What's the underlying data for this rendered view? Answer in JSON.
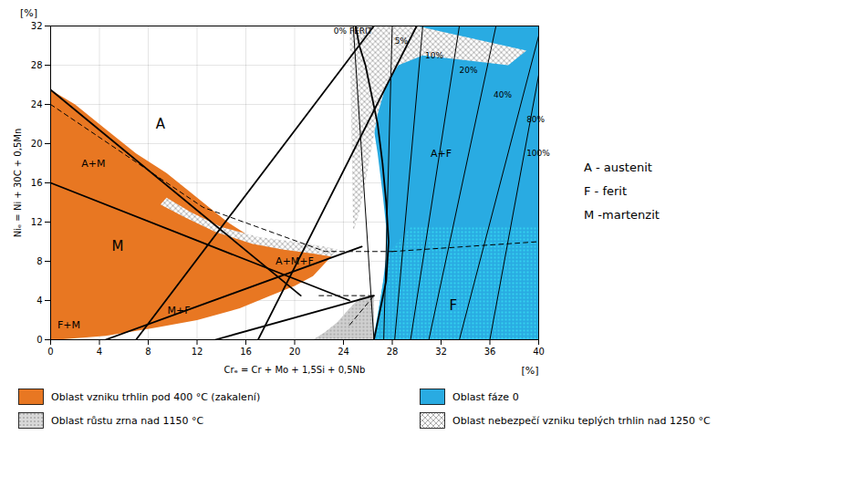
{
  "chart_data": {
    "type": "area",
    "xlabel": "Crₑ = Cr + Mo + 1,5Si + 0,5Nb",
    "ylabel": "Niₑ = Ni + 30C + 0,5Mn",
    "x_unit": "[%]",
    "y_unit": "[%]",
    "note": "A - austenit\nF - ferit\nM -martenzit",
    "xlim": [
      0,
      40
    ],
    "ylim": [
      0,
      32
    ],
    "xticks": [
      0,
      4,
      8,
      12,
      16,
      20,
      24,
      28,
      32,
      36,
      40
    ],
    "yticks": [
      0,
      4,
      8,
      12,
      16,
      20,
      24,
      28,
      32
    ],
    "grid": true,
    "legend_items": [
      {
        "name": "Oblast vzniku trhlin pod 400 °C (zakalení)",
        "color": "#E87722"
      },
      {
        "name": "Oblast fáze 0",
        "color": "#29ABE2"
      },
      {
        "name": "Oblast růstu zrna nad 1150 °C",
        "color": "#D8D8D8",
        "marker": "dots"
      },
      {
        "name": "Oblast nebezpečí vzniku teplých trhlin nad 1250 °C",
        "color": "white",
        "marker": "cross"
      }
    ],
    "regions": [
      {
        "color": "#E87722",
        "polygon": [
          [
            0,
            0
          ],
          [
            0,
            25.5
          ],
          [
            2.0,
            24.0
          ],
          [
            4.5,
            21.5
          ],
          [
            7.0,
            19.0
          ],
          [
            9.5,
            17.0
          ],
          [
            11.5,
            15.0
          ],
          [
            13.0,
            13.5
          ],
          [
            14.5,
            12.0
          ],
          [
            16.0,
            10.8
          ],
          [
            18.0,
            9.8
          ],
          [
            20.0,
            9.2
          ],
          [
            21.5,
            9.0
          ],
          [
            22.5,
            9.2
          ],
          [
            23.0,
            8.5
          ],
          [
            21.5,
            6.5
          ],
          [
            20.0,
            5.5
          ],
          [
            18.0,
            4.5
          ],
          [
            15.5,
            3.2
          ],
          [
            12.0,
            2.0
          ],
          [
            8.5,
            1.2
          ],
          [
            4.5,
            0.4
          ],
          [
            1.0,
            0.05
          ],
          [
            0,
            0
          ]
        ]
      },
      {
        "color": "#29ABE2",
        "polygon": [
          [
            25.0,
            32
          ],
          [
            40,
            32
          ],
          [
            40,
            0
          ],
          [
            26.5,
            0
          ],
          [
            26.5,
            0.5
          ],
          [
            26.8,
            2.5
          ],
          [
            27.2,
            5.5
          ],
          [
            27.5,
            8.5
          ],
          [
            27.5,
            11.5
          ],
          [
            27.2,
            15.0
          ],
          [
            26.8,
            19.0
          ],
          [
            26.3,
            23.0
          ],
          [
            25.8,
            27.0
          ],
          [
            25.3,
            30.0
          ],
          [
            25.0,
            32
          ]
        ]
      },
      {
        "color": "#D0D0D0",
        "marker": "dots",
        "polygon": [
          [
            21.5,
            0
          ],
          [
            22.5,
            0.8
          ],
          [
            23.5,
            1.8
          ],
          [
            24.5,
            3.2
          ],
          [
            25.5,
            4.5
          ],
          [
            26.5,
            4.5
          ],
          [
            26.5,
            0
          ],
          [
            21.5,
            0
          ]
        ]
      },
      {
        "color": "#29ABE2",
        "marker": "dots",
        "polygon": [
          [
            26.5,
            0
          ],
          [
            27.2,
            5.5
          ],
          [
            27.8,
            9.0
          ],
          [
            29.5,
            11.5
          ],
          [
            40,
            11.5
          ],
          [
            40,
            0
          ],
          [
            26.5,
            0
          ]
        ]
      },
      {
        "color": "white",
        "marker": "cross",
        "polygon": [
          [
            24.5,
            32
          ],
          [
            30.0,
            32
          ],
          [
            39.0,
            29.5
          ],
          [
            37.5,
            28.0
          ],
          [
            30.5,
            29.0
          ],
          [
            28.5,
            28.0
          ],
          [
            27.5,
            26.0
          ],
          [
            26.8,
            23.0
          ],
          [
            26.3,
            19.5
          ],
          [
            25.8,
            16.0
          ],
          [
            25.3,
            13.0
          ],
          [
            24.8,
            11.0
          ],
          [
            24.5,
            32
          ]
        ]
      },
      {
        "color": "white",
        "marker": "cross",
        "polygon": [
          [
            9.5,
            14.5
          ],
          [
            11.5,
            13.0
          ],
          [
            14.0,
            11.5
          ],
          [
            17.0,
            10.5
          ],
          [
            20.0,
            10.0
          ],
          [
            22.5,
            9.5
          ],
          [
            23.5,
            9.2
          ],
          [
            23.0,
            8.5
          ],
          [
            21.5,
            8.8
          ],
          [
            19.0,
            9.2
          ],
          [
            16.5,
            9.8
          ],
          [
            13.5,
            11.0
          ],
          [
            11.0,
            12.5
          ],
          [
            9.0,
            13.8
          ],
          [
            9.5,
            14.5
          ]
        ]
      }
    ],
    "ferrite_lines": [
      {
        "label": "0% FERIT",
        "x": [
          24.8,
          26.5
        ],
        "y": [
          32,
          0
        ],
        "label_x": 23.2,
        "label_y": 31.5
      },
      {
        "label": "5%",
        "x": [
          28.0,
          27.3
        ],
        "y": [
          32,
          0
        ],
        "label_x": 28.2,
        "label_y": 30.5
      },
      {
        "label": "10%",
        "x": [
          30.5,
          28.2
        ],
        "y": [
          32,
          0
        ],
        "label_x": 30.7,
        "label_y": 29.0
      },
      {
        "label": "20%",
        "x": [
          33.5,
          29.5
        ],
        "y": [
          32,
          0
        ],
        "label_x": 33.5,
        "label_y": 27.5
      },
      {
        "label": "40%",
        "x": [
          36.5,
          31.0
        ],
        "y": [
          32,
          0
        ],
        "label_x": 36.3,
        "label_y": 25.0
      },
      {
        "label": "80%",
        "x": [
          40,
          33.5
        ],
        "y": [
          31,
          0
        ],
        "label_x": 39.0,
        "label_y": 22.5
      },
      {
        "label": "100%",
        "x": [
          40,
          36.0
        ],
        "y": [
          27,
          0
        ],
        "label_x": 39.0,
        "label_y": 19.0
      }
    ],
    "boundary_lines": [
      {
        "line_style": "solid",
        "x": [
          0,
          20.5
        ],
        "y": [
          25.5,
          4.5
        ]
      },
      {
        "line_style": "solid",
        "x": [
          0,
          24.5
        ],
        "y": [
          16.0,
          4.0
        ]
      },
      {
        "line_style": "solid",
        "x": [
          4.5,
          25.5
        ],
        "y": [
          0,
          9.5
        ]
      },
      {
        "line_style": "solid",
        "x": [
          13.5,
          26.5
        ],
        "y": [
          0,
          4.5
        ]
      },
      {
        "line_style": "solid",
        "x": [
          7.0,
          26.5
        ],
        "y": [
          0,
          32
        ]
      },
      {
        "line_style": "solid",
        "x": [
          17.0,
          30.0
        ],
        "y": [
          0,
          32
        ]
      },
      {
        "line_style": "dashed",
        "x": [
          0,
          12.5,
          22.5,
          28.0
        ],
        "y": [
          24.0,
          13.5,
          9.0,
          9.0
        ]
      },
      {
        "line_style": "dashed",
        "x": [
          22.0,
          26.5
        ],
        "y": [
          4.5,
          4.5
        ]
      },
      {
        "line_style": "dashed",
        "x": [
          24.5,
          26.5
        ],
        "y": [
          1.5,
          4.5
        ]
      },
      {
        "line_style": "dashed",
        "x": [
          28.0,
          40
        ],
        "y": [
          9.0,
          10.0
        ]
      },
      {
        "line_style": "solid",
        "x": [
          26.5,
          27.0,
          27.5,
          27.7,
          27.5,
          27.2,
          26.8,
          26.3,
          25.8,
          25.3,
          25.0
        ],
        "y": [
          0,
          3,
          6,
          10,
          14,
          18,
          22,
          25,
          28,
          30,
          32
        ]
      }
    ],
    "region_labels": [
      {
        "text": "A",
        "x": 9,
        "y": 22
      },
      {
        "text": "A+M",
        "x": 3.5,
        "y": 18
      },
      {
        "text": "M",
        "x": 5.5,
        "y": 9.5
      },
      {
        "text": "F+M",
        "x": 1.5,
        "y": 1.5
      },
      {
        "text": "M+F",
        "x": 10.5,
        "y": 3.0
      },
      {
        "text": "A+M+F",
        "x": 20.0,
        "y": 8.0
      },
      {
        "text": "A+F",
        "x": 32,
        "y": 19
      },
      {
        "text": "F",
        "x": 33,
        "y": 3.5
      }
    ]
  }
}
